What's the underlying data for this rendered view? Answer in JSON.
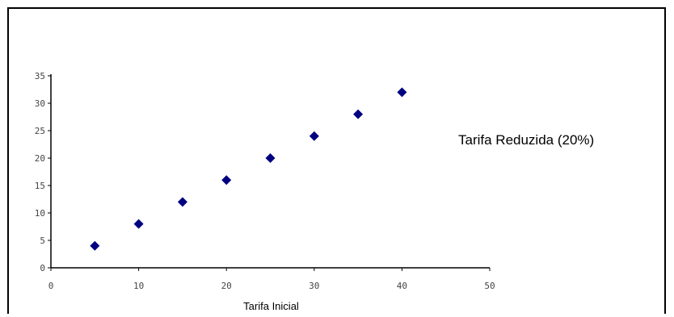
{
  "chart_data": {
    "type": "scatter",
    "title": "",
    "xlabel": "Tarifa Inicial",
    "ylabel": "",
    "xlim": [
      0,
      50
    ],
    "ylim": [
      0,
      35
    ],
    "x_ticks": [
      "0",
      "10",
      "20",
      "30",
      "40",
      "50"
    ],
    "y_ticks": [
      "0",
      "5",
      "10",
      "15",
      "20",
      "25",
      "30",
      "35"
    ],
    "grid": false,
    "legend_position": "right",
    "series": [
      {
        "name": "Tarifa Reduzida (20%)",
        "color": "#000080",
        "marker": "diamond",
        "x": [
          5,
          10,
          15,
          20,
          25,
          30,
          35,
          40
        ],
        "y": [
          4,
          8,
          12,
          16,
          20,
          24,
          28,
          32
        ]
      }
    ]
  }
}
